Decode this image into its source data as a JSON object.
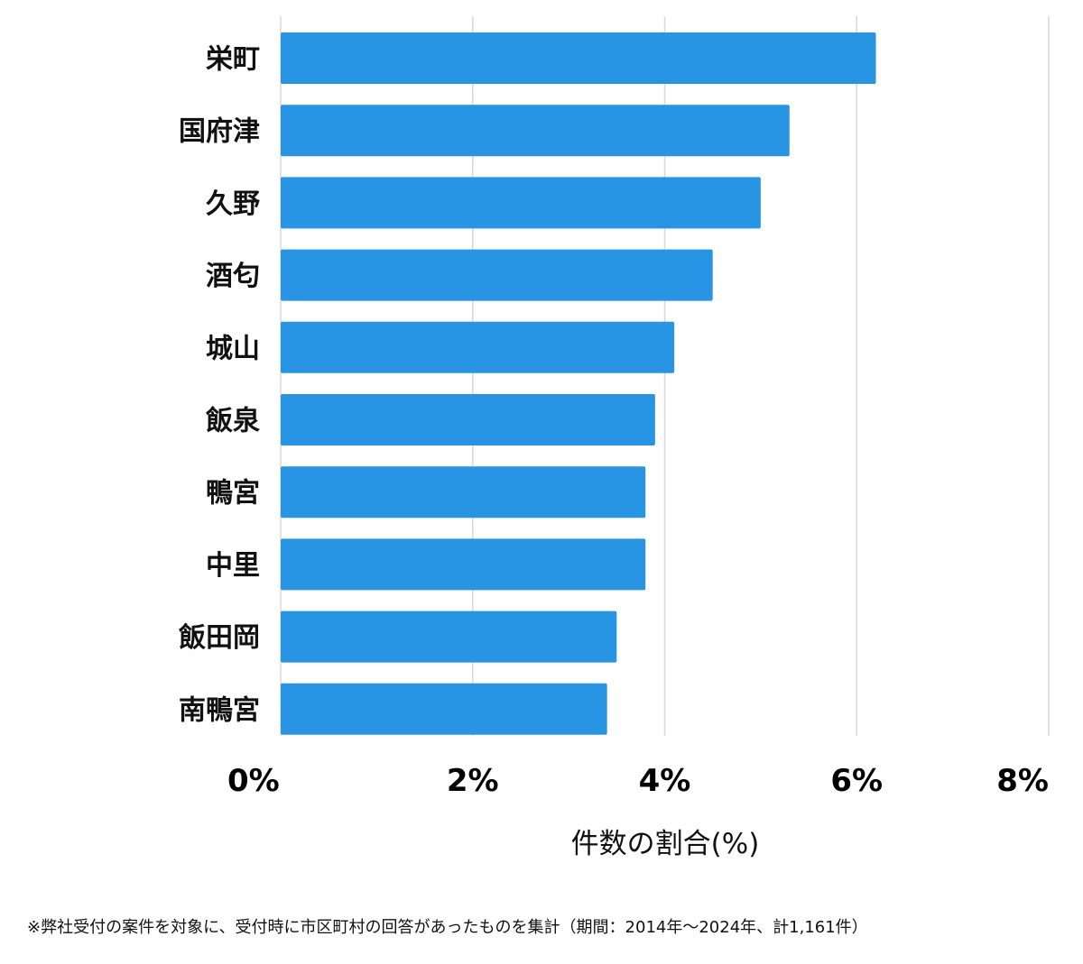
{
  "chart_data": {
    "type": "bar",
    "orientation": "horizontal",
    "categories": [
      "栄町",
      "国府津",
      "久野",
      "酒匂",
      "城山",
      "飯泉",
      "鴨宮",
      "中里",
      "飯田岡",
      "南鴨宮"
    ],
    "values": [
      6.2,
      5.3,
      5.0,
      4.5,
      4.1,
      3.9,
      3.8,
      3.8,
      3.5,
      3.4
    ],
    "xlim": [
      0,
      8
    ],
    "xticks": [
      0,
      2,
      4,
      6,
      8
    ],
    "xtick_labels": [
      "0%",
      "2%",
      "4%",
      "6%",
      "8%"
    ],
    "xlabel": "件数の割合(%)",
    "ylabel": "",
    "grid": "vertical",
    "bar_color": "#2795e3",
    "grid_color": "#d9d9d9"
  },
  "footnote": "※弊社受付の案件を対象に、受付時に市区町村の回答があったものを集計（期間：2014年〜2024年、計1,161件）"
}
